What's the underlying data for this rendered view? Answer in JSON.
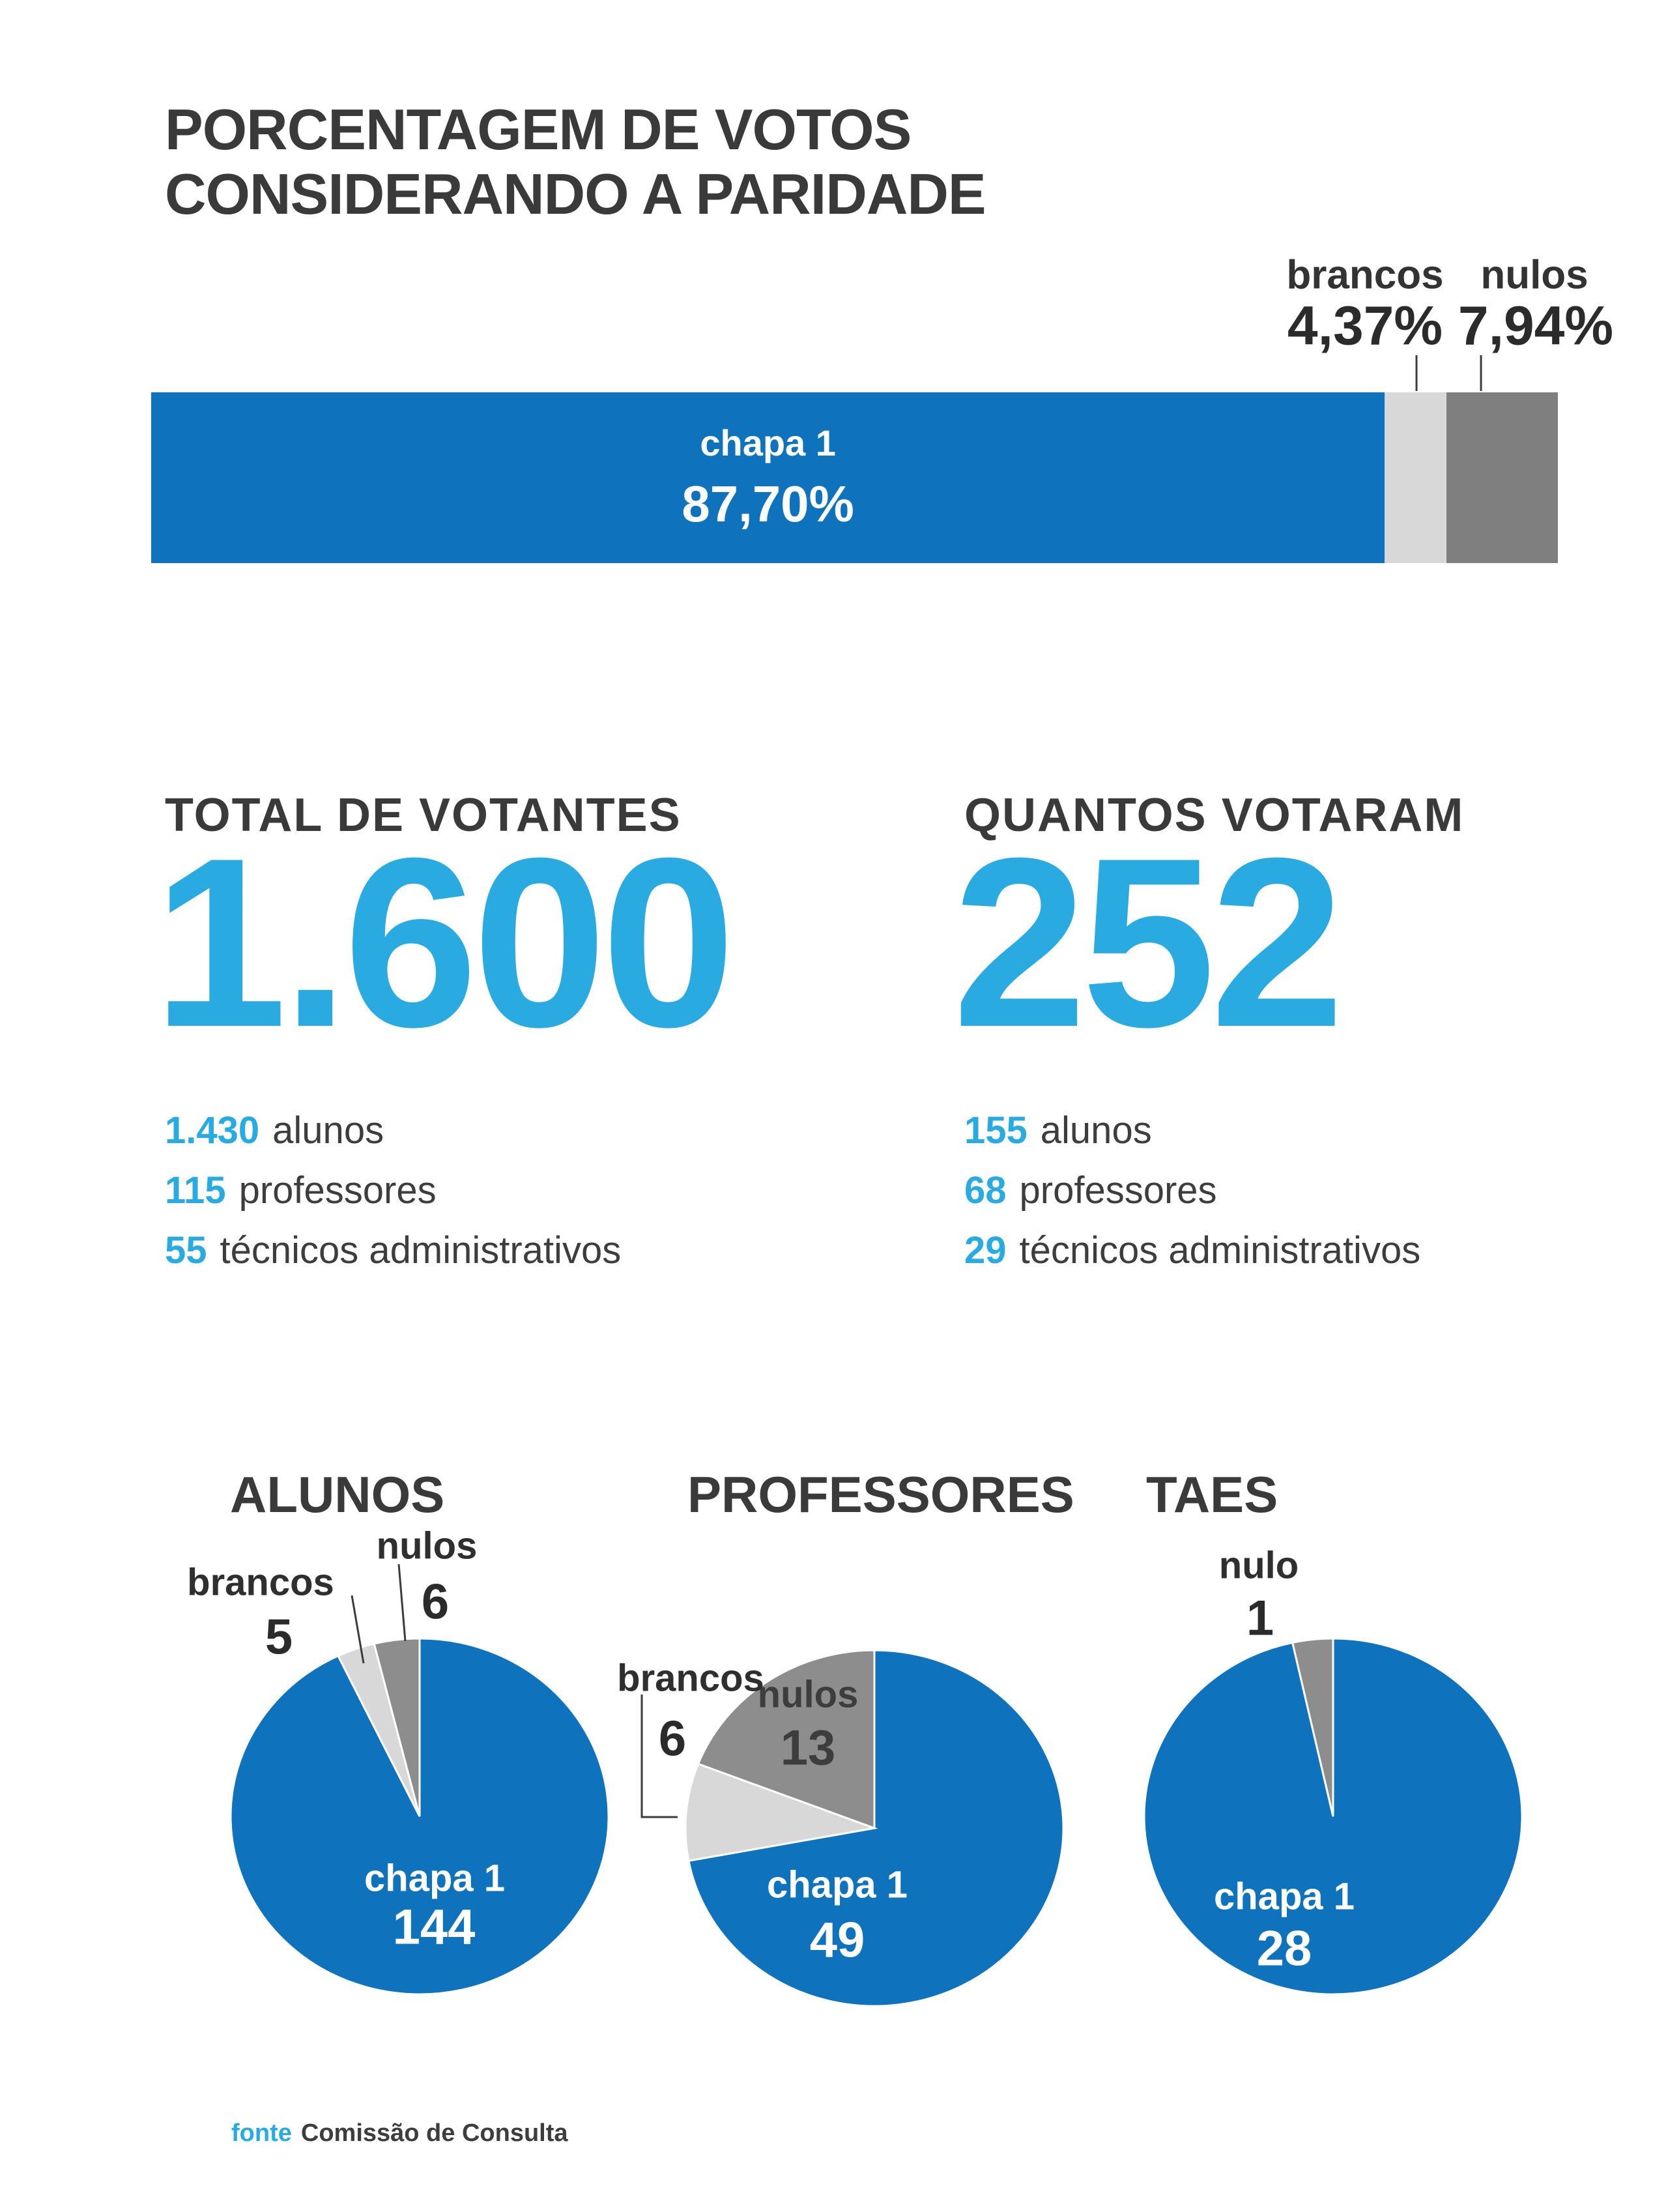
{
  "colors": {
    "blue": "#0f72bd",
    "light_gray": "#d8d8d8",
    "dark_gray": "#7f7f7f",
    "dark_gray_pie": "#8d8d8d",
    "accent_blue": "#29abe2",
    "text_dark": "#3a3a3a",
    "white": "#ffffff"
  },
  "title": {
    "line1": "PORCENTAGEM DE VOTOS",
    "line2": "CONSIDERANDO A PARIDADE"
  },
  "chart_data": [
    {
      "type": "bar",
      "variant": "stacked-horizontal-100pct",
      "title": "PORCENTAGEM DE VOTOS CONSIDERANDO A PARIDADE",
      "xlim": [
        0,
        100
      ],
      "grid": false,
      "legend": "none",
      "segments": [
        {
          "name": "chapa 1",
          "pct": 87.7,
          "pct_label": "87,70%",
          "color_key": "blue",
          "label_inside": true
        },
        {
          "name": "brancos",
          "pct": 4.37,
          "pct_label": "4,37%",
          "color_key": "light_gray",
          "label_inside": false
        },
        {
          "name": "nulos",
          "pct": 7.94,
          "pct_label": "7,94%",
          "color_key": "dark_gray",
          "label_inside": false
        }
      ]
    },
    {
      "type": "pie",
      "title": "ALUNOS",
      "total": 155,
      "start_angle_deg": 0,
      "direction": "clockwise",
      "slices": [
        {
          "name": "chapa 1",
          "value": 144,
          "color_key": "blue",
          "label_position": "inside"
        },
        {
          "name": "brancos",
          "value": 5,
          "color_key": "light_gray",
          "label_position": "outside"
        },
        {
          "name": "nulos",
          "value": 6,
          "color_key": "dark_gray_pie",
          "label_position": "outside"
        }
      ]
    },
    {
      "type": "pie",
      "title": "PROFESSORES",
      "total": 68,
      "start_angle_deg": 0,
      "direction": "clockwise",
      "slices": [
        {
          "name": "chapa 1",
          "value": 49,
          "color_key": "blue",
          "label_position": "inside"
        },
        {
          "name": "brancos",
          "value": 6,
          "color_key": "light_gray",
          "label_position": "outside"
        },
        {
          "name": "nulos",
          "value": 13,
          "color_key": "dark_gray_pie",
          "label_position": "inside"
        }
      ]
    },
    {
      "type": "pie",
      "title": "TAES",
      "total": 29,
      "start_angle_deg": 0,
      "direction": "clockwise",
      "slices": [
        {
          "name": "chapa 1",
          "value": 28,
          "color_key": "blue",
          "label_position": "inside"
        },
        {
          "name": "nulo",
          "value": 1,
          "color_key": "dark_gray_pie",
          "label_position": "outside"
        }
      ]
    }
  ],
  "stats": {
    "left": {
      "heading": "TOTAL DE VOTANTES",
      "big_number": "1.600",
      "breakdown": [
        {
          "value": "1.430",
          "label": "alunos"
        },
        {
          "value": "115",
          "label": "professores"
        },
        {
          "value": "55",
          "label": "técnicos administrativos"
        }
      ]
    },
    "right": {
      "heading": "QUANTOS VOTARAM",
      "big_number": "252",
      "breakdown": [
        {
          "value": "155",
          "label": "alunos"
        },
        {
          "value": "68",
          "label": "professores"
        },
        {
          "value": "29",
          "label": "técnicos administrativos"
        }
      ]
    }
  },
  "footer": {
    "source_label": "fonte",
    "source_name": "Comissão de Consulta"
  }
}
